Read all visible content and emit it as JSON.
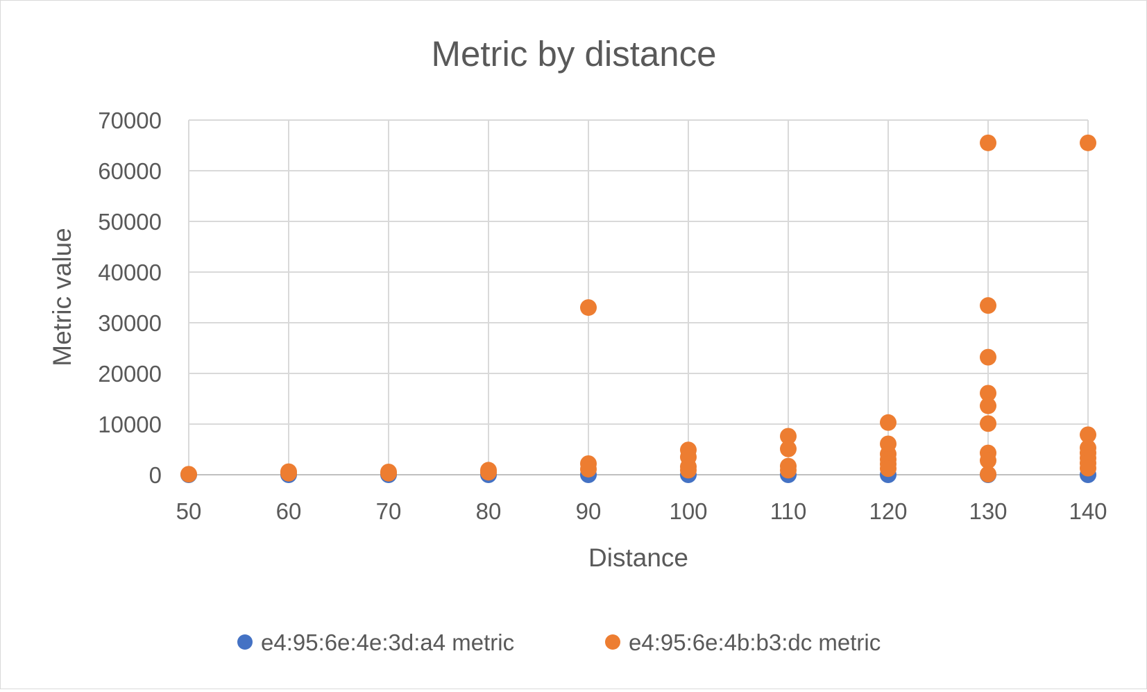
{
  "chart_data": {
    "type": "scatter",
    "title": "Metric by distance",
    "xlabel": "Distance",
    "ylabel": "Metric value",
    "xlim": [
      50,
      140
    ],
    "ylim": [
      0,
      70000
    ],
    "x_ticks": [
      50,
      60,
      70,
      80,
      90,
      100,
      110,
      120,
      130,
      140
    ],
    "y_ticks": [
      0,
      10000,
      20000,
      30000,
      40000,
      50000,
      60000,
      70000
    ],
    "grid": true,
    "legend_position": "bottom",
    "series": [
      {
        "name": "e4:95:6e:4e:3d:a4 metric",
        "color": "#4472C4",
        "points": [
          [
            50,
            0
          ],
          [
            60,
            0
          ],
          [
            70,
            0
          ],
          [
            80,
            0
          ],
          [
            90,
            0
          ],
          [
            100,
            0
          ],
          [
            110,
            0
          ],
          [
            120,
            0
          ],
          [
            130,
            0
          ],
          [
            140,
            0
          ]
        ]
      },
      {
        "name": "e4:95:6e:4b:b3:dc metric",
        "color": "#ED7D31",
        "points": [
          [
            50,
            100
          ],
          [
            60,
            300
          ],
          [
            60,
            600
          ],
          [
            70,
            300
          ],
          [
            70,
            550
          ],
          [
            80,
            500
          ],
          [
            80,
            900
          ],
          [
            90,
            33000
          ],
          [
            90,
            2200
          ],
          [
            90,
            1100
          ],
          [
            100,
            4900
          ],
          [
            100,
            3500
          ],
          [
            100,
            1600
          ],
          [
            100,
            900
          ],
          [
            110,
            7600
          ],
          [
            110,
            5100
          ],
          [
            110,
            1700
          ],
          [
            110,
            900
          ],
          [
            120,
            10300
          ],
          [
            120,
            6100
          ],
          [
            120,
            4100
          ],
          [
            120,
            3000
          ],
          [
            120,
            2100
          ],
          [
            120,
            1200
          ],
          [
            130,
            65500
          ],
          [
            130,
            33400
          ],
          [
            130,
            23200
          ],
          [
            130,
            16100
          ],
          [
            130,
            13600
          ],
          [
            130,
            10100
          ],
          [
            130,
            4300
          ],
          [
            130,
            2800
          ],
          [
            130,
            100
          ],
          [
            140,
            65500
          ],
          [
            140,
            7900
          ],
          [
            140,
            5300
          ],
          [
            140,
            4300
          ],
          [
            140,
            3300
          ],
          [
            140,
            2300
          ],
          [
            140,
            1300
          ]
        ]
      }
    ]
  }
}
